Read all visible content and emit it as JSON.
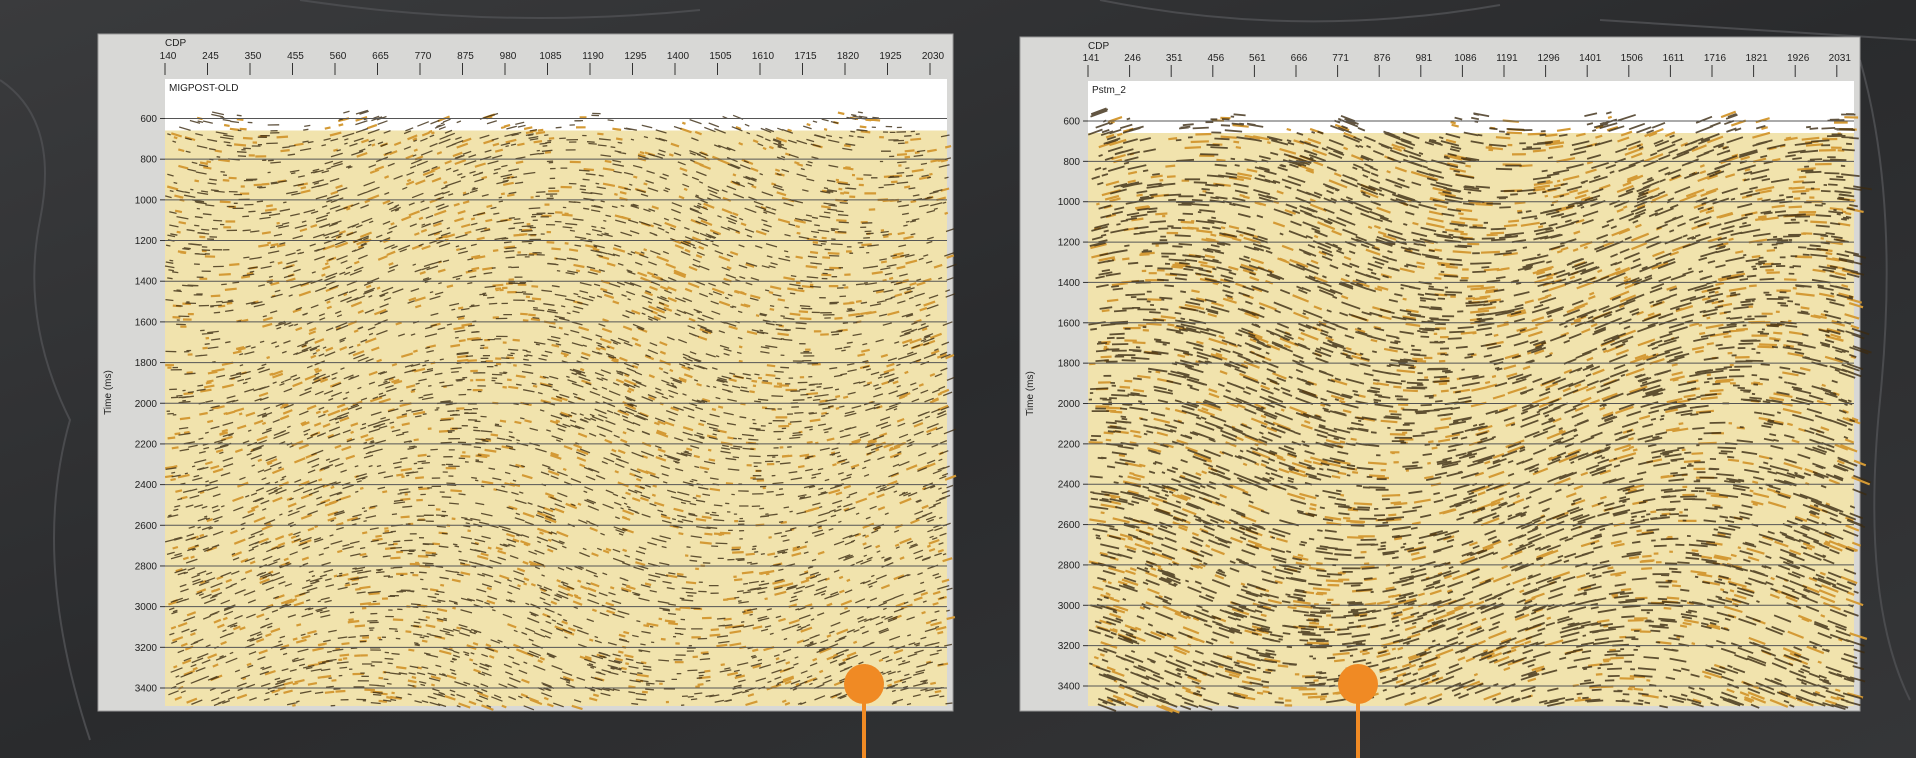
{
  "panels": [
    {
      "title": "MIGPOST-OLD",
      "x_label": "CDP",
      "x_ticks": [
        140,
        245,
        350,
        455,
        560,
        665,
        770,
        875,
        980,
        1085,
        1190,
        1295,
        1400,
        1505,
        1610,
        1715,
        1820,
        1925,
        2030
      ],
      "y_label": "Time (ms)",
      "y_ticks": [
        600,
        800,
        1000,
        1200,
        1400,
        1600,
        1800,
        2000,
        2200,
        2400,
        2600,
        2800,
        3000,
        3200,
        3400
      ]
    },
    {
      "title": "Pstm_2",
      "x_label": "CDP",
      "x_ticks": [
        141,
        246,
        351,
        456,
        561,
        666,
        771,
        876,
        981,
        1086,
        1191,
        1296,
        1401,
        1506,
        1611,
        1716,
        1821,
        1926,
        2031
      ],
      "y_label": "Time (ms)",
      "y_ticks": [
        600,
        800,
        1000,
        1200,
        1400,
        1600,
        1800,
        2000,
        2200,
        2400,
        2600,
        2800,
        3000,
        3200,
        3400
      ]
    }
  ]
}
